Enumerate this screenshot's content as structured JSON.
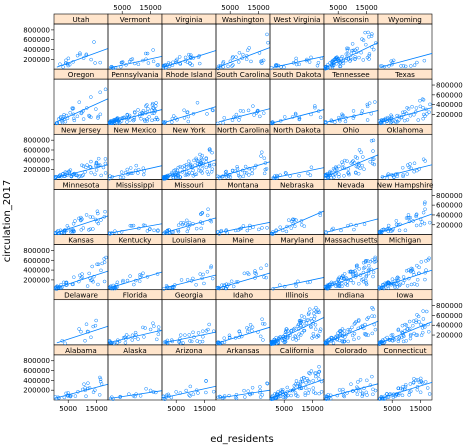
{
  "chart_data": {
    "type": "scatter",
    "xlabel": "ed_residents",
    "ylabel": "circulation_2017",
    "xlim": [
      0,
      19000
    ],
    "ylim": [
      0,
      920000
    ],
    "x_ticks": [
      5000,
      15000
    ],
    "y_ticks": [
      200000,
      400000,
      600000,
      800000
    ],
    "x_tick_labels": [
      "5000",
      "15000"
    ],
    "y_tick_labels": [
      "200000",
      "400000",
      "600000",
      "800000"
    ],
    "layout": {
      "columns": 7,
      "rows": 7
    },
    "panels": [
      {
        "name": "Alabama",
        "trend": [
          [
            1000,
            45000
          ],
          [
            19000,
            320000
          ]
        ],
        "n": 30
      },
      {
        "name": "Alaska",
        "trend": [
          [
            1000,
            35000
          ],
          [
            19000,
            190000
          ]
        ],
        "n": 14
      },
      {
        "name": "Arizona",
        "trend": [
          [
            1000,
            50000
          ],
          [
            19000,
            280000
          ]
        ],
        "n": 22
      },
      {
        "name": "Arkansas",
        "trend": [
          [
            1000,
            40000
          ],
          [
            19000,
            200000
          ]
        ],
        "n": 24
      },
      {
        "name": "California",
        "trend": [
          [
            1000,
            60000
          ],
          [
            19000,
            420000
          ]
        ],
        "n": 90
      },
      {
        "name": "Colorado",
        "trend": [
          [
            1000,
            55000
          ],
          [
            19000,
            330000
          ]
        ],
        "n": 40
      },
      {
        "name": "Connecticut",
        "trend": [
          [
            1000,
            40000
          ],
          [
            19000,
            360000
          ]
        ],
        "n": 55
      },
      {
        "name": "Delaware",
        "trend": [
          [
            1000,
            40000
          ],
          [
            19000,
            380000
          ]
        ],
        "n": 12
      },
      {
        "name": "Florida",
        "trend": [
          [
            1000,
            55000
          ],
          [
            19000,
            300000
          ]
        ],
        "n": 35
      },
      {
        "name": "Georgia",
        "trend": [
          [
            1000,
            45000
          ],
          [
            19000,
            260000
          ]
        ],
        "n": 30
      },
      {
        "name": "Idaho",
        "trend": [
          [
            1000,
            45000
          ],
          [
            19000,
            360000
          ]
        ],
        "n": 32
      },
      {
        "name": "Illinois",
        "trend": [
          [
            1000,
            50000
          ],
          [
            19000,
            560000
          ]
        ],
        "n": 120
      },
      {
        "name": "Indiana",
        "trend": [
          [
            1000,
            50000
          ],
          [
            19000,
            480000
          ]
        ],
        "n": 80
      },
      {
        "name": "Iowa",
        "trend": [
          [
            1000,
            40000
          ],
          [
            19000,
            470000
          ]
        ],
        "n": 70
      },
      {
        "name": "Kansas",
        "trend": [
          [
            1000,
            40000
          ],
          [
            19000,
            380000
          ]
        ],
        "n": 45
      },
      {
        "name": "Kentucky",
        "trend": [
          [
            1000,
            45000
          ],
          [
            19000,
            360000
          ]
        ],
        "n": 30
      },
      {
        "name": "Louisiana",
        "trend": [
          [
            1000,
            40000
          ],
          [
            19000,
            300000
          ]
        ],
        "n": 25
      },
      {
        "name": "Maine",
        "trend": [
          [
            1000,
            35000
          ],
          [
            19000,
            340000
          ]
        ],
        "n": 30
      },
      {
        "name": "Maryland",
        "trend": [
          [
            1000,
            30000
          ],
          [
            19000,
            250000
          ]
        ],
        "n": 8
      },
      {
        "name": "Massachusetts",
        "trend": [
          [
            1000,
            50000
          ],
          [
            19000,
            440000
          ]
        ],
        "n": 100
      },
      {
        "name": "Michigan",
        "trend": [
          [
            1000,
            50000
          ],
          [
            19000,
            400000
          ]
        ],
        "n": 70
      },
      {
        "name": "Minnesota",
        "trend": [
          [
            1000,
            40000
          ],
          [
            19000,
            380000
          ]
        ],
        "n": 50
      },
      {
        "name": "Mississippi",
        "trend": [
          [
            1000,
            35000
          ],
          [
            19000,
            220000
          ]
        ],
        "n": 20
      },
      {
        "name": "Missouri",
        "trend": [
          [
            1000,
            40000
          ],
          [
            19000,
            340000
          ]
        ],
        "n": 40
      },
      {
        "name": "Montana",
        "trend": [
          [
            1000,
            40000
          ],
          [
            19000,
            250000
          ]
        ],
        "n": 20
      },
      {
        "name": "Nebraska",
        "trend": [
          [
            1000,
            30000
          ],
          [
            19000,
            480000
          ]
        ],
        "n": 25
      },
      {
        "name": "Nevada",
        "trend": [
          [
            1000,
            50000
          ],
          [
            19000,
            320000
          ]
        ],
        "n": 10
      },
      {
        "name": "New Hampshire",
        "trend": [
          [
            1000,
            45000
          ],
          [
            19000,
            420000
          ]
        ],
        "n": 45
      },
      {
        "name": "New Jersey",
        "trend": [
          [
            1000,
            40000
          ],
          [
            19000,
            300000
          ]
        ],
        "n": 60
      },
      {
        "name": "New Mexico",
        "trend": [
          [
            1000,
            45000
          ],
          [
            19000,
            280000
          ]
        ],
        "n": 20
      },
      {
        "name": "New York",
        "trend": [
          [
            1000,
            40000
          ],
          [
            19000,
            400000
          ]
        ],
        "n": 110
      },
      {
        "name": "North Carolina",
        "trend": [
          [
            1000,
            50000
          ],
          [
            19000,
            360000
          ]
        ],
        "n": 40
      },
      {
        "name": "North Dakota",
        "trend": [
          [
            1000,
            30000
          ],
          [
            19000,
            240000
          ]
        ],
        "n": 15
      },
      {
        "name": "Ohio",
        "trend": [
          [
            1000,
            70000
          ],
          [
            19000,
            500000
          ]
        ],
        "n": 70
      },
      {
        "name": "Oklahoma",
        "trend": [
          [
            1000,
            40000
          ],
          [
            19000,
            300000
          ]
        ],
        "n": 25
      },
      {
        "name": "Oregon",
        "trend": [
          [
            1000,
            50000
          ],
          [
            19000,
            520000
          ]
        ],
        "n": 40
      },
      {
        "name": "Pennsylvania",
        "trend": [
          [
            1000,
            40000
          ],
          [
            19000,
            300000
          ]
        ],
        "n": 90
      },
      {
        "name": "Rhode Island",
        "trend": [
          [
            1000,
            40000
          ],
          [
            19000,
            360000
          ]
        ],
        "n": 20
      },
      {
        "name": "South Carolina",
        "trend": [
          [
            1000,
            50000
          ],
          [
            19000,
            320000
          ]
        ],
        "n": 20
      },
      {
        "name": "South Dakota",
        "trend": [
          [
            1000,
            30000
          ],
          [
            19000,
            300000
          ]
        ],
        "n": 18
      },
      {
        "name": "Tennessee",
        "trend": [
          [
            1000,
            45000
          ],
          [
            19000,
            280000
          ]
        ],
        "n": 25
      },
      {
        "name": "Texas",
        "trend": [
          [
            1000,
            45000
          ],
          [
            19000,
            340000
          ]
        ],
        "n": 60
      },
      {
        "name": "Utah",
        "trend": [
          [
            1000,
            40000
          ],
          [
            19000,
            420000
          ]
        ],
        "n": 20
      },
      {
        "name": "Vermont",
        "trend": [
          [
            1000,
            30000
          ],
          [
            19000,
            260000
          ]
        ],
        "n": 25
      },
      {
        "name": "Virginia",
        "trend": [
          [
            1000,
            50000
          ],
          [
            19000,
            380000
          ]
        ],
        "n": 35
      },
      {
        "name": "Washington",
        "trend": [
          [
            1000,
            50000
          ],
          [
            19000,
            440000
          ]
        ],
        "n": 30
      },
      {
        "name": "West Virginia",
        "trend": [
          [
            1000,
            35000
          ],
          [
            19000,
            260000
          ]
        ],
        "n": 20
      },
      {
        "name": "Wisconsin",
        "trend": [
          [
            1000,
            40000
          ],
          [
            19000,
            540000
          ]
        ],
        "n": 85
      },
      {
        "name": "Wyoming",
        "trend": [
          [
            1000,
            40000
          ],
          [
            19000,
            320000
          ]
        ],
        "n": 15
      }
    ]
  },
  "colors": {
    "points": "#0080ff",
    "trend_line": "#0080ff",
    "strip_fill": "#ffe5cc",
    "border": "#000000",
    "background": "#ffffff"
  }
}
